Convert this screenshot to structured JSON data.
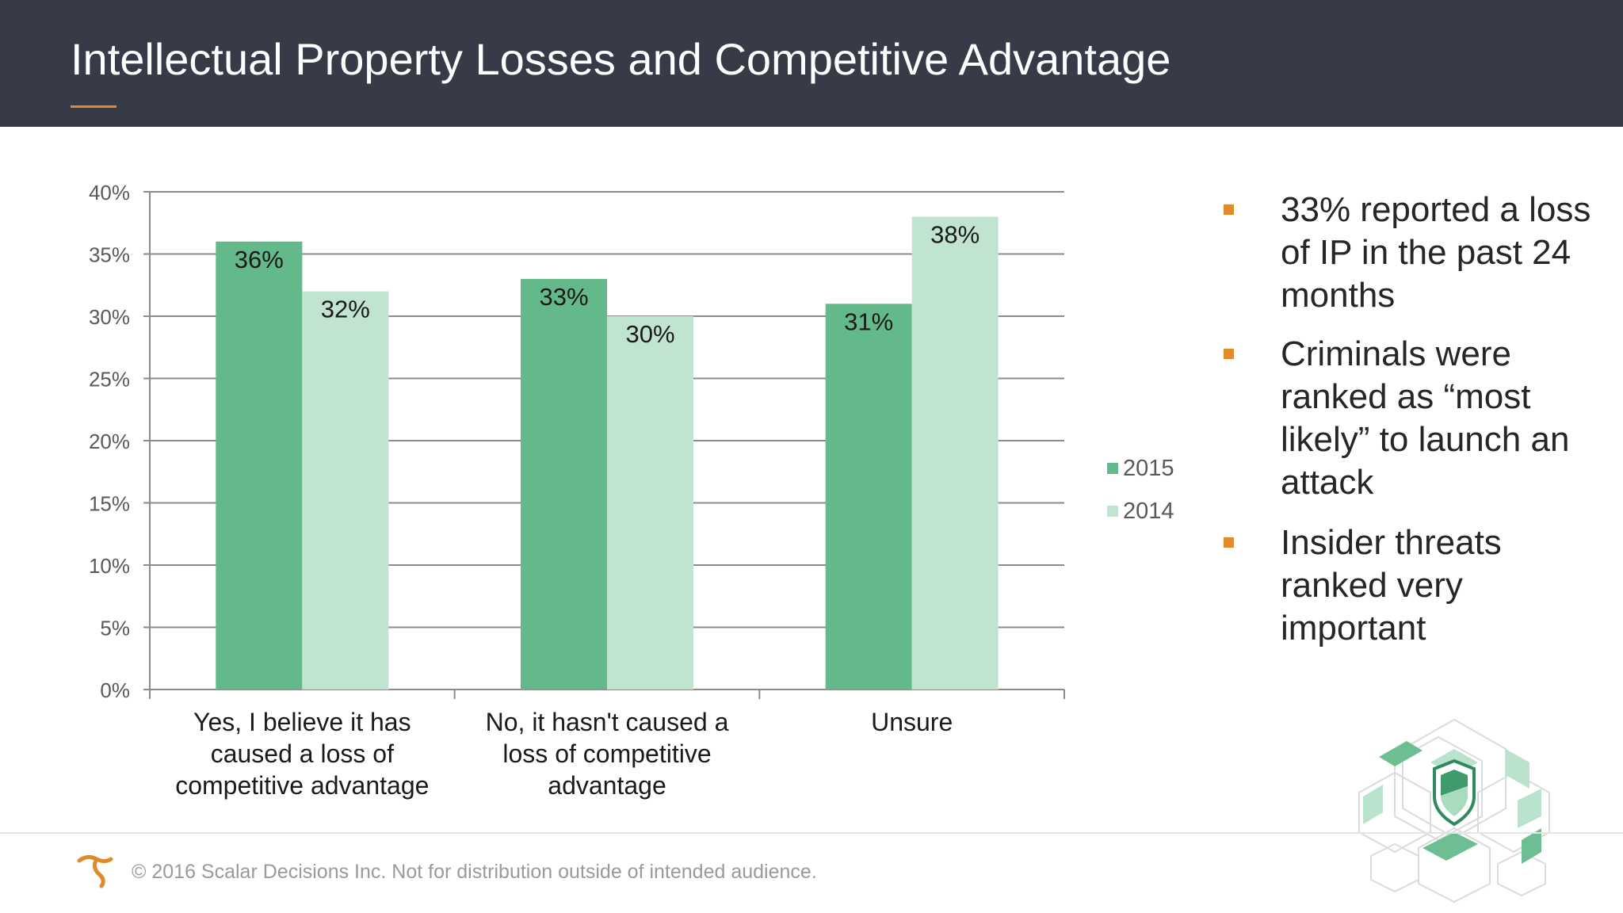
{
  "slide": {
    "title": "Intellectual Property Losses and Competitive Advantage",
    "footer": "© 2016 Scalar Decisions Inc. Not for distribution outside of intended audience."
  },
  "colors": {
    "header_bg": "#363b47",
    "accent": "#e08a2a",
    "series_2015": "#63b989",
    "series_2014": "#c1e4d0"
  },
  "bullets": [
    "33% reported a loss of IP in the past 24 months",
    "Criminals were ranked as “most likely” to launch an attack",
    "Insider threats ranked very important"
  ],
  "chart_data": {
    "type": "bar",
    "categories": [
      [
        "Yes, I believe it has",
        "caused a loss of",
        "competitive advantage"
      ],
      [
        "No, it hasn't caused a",
        "loss of competitive",
        "advantage"
      ],
      [
        "Unsure"
      ]
    ],
    "series": [
      {
        "name": "2015",
        "values": [
          36,
          33,
          31
        ],
        "labels": [
          "36%",
          "33%",
          "31%"
        ]
      },
      {
        "name": "2014",
        "values": [
          32,
          30,
          38
        ],
        "labels": [
          "32%",
          "30%",
          "38%"
        ]
      }
    ],
    "yticks": [
      "0%",
      "5%",
      "10%",
      "15%",
      "20%",
      "25%",
      "30%",
      "35%",
      "40%"
    ],
    "ylim": [
      0,
      40
    ],
    "grid": true,
    "legend": "right"
  }
}
